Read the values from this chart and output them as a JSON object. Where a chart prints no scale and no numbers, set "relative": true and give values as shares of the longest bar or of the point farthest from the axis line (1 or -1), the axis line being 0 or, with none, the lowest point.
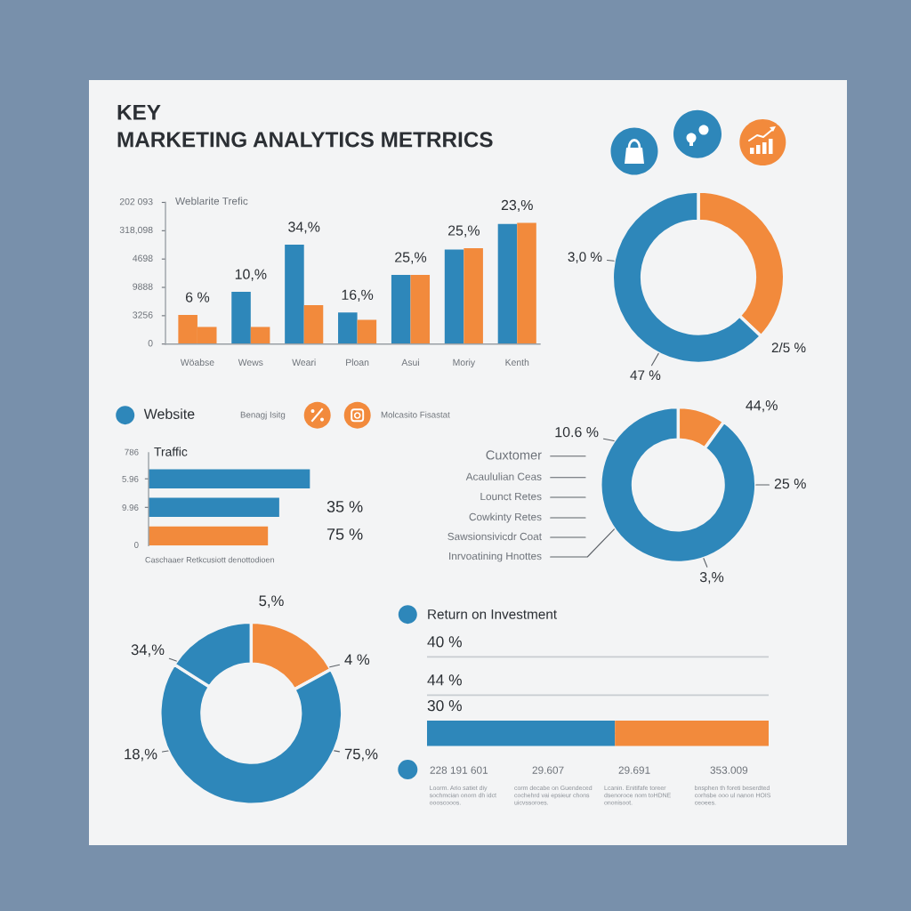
{
  "chart_data": [
    {
      "type": "bar",
      "relative": true,
      "title": "KEY\nMARKETING ANALYTICS METRRICS",
      "subtitle": "Weblarite Trefic",
      "categories": [
        "Wöabse",
        "Wews",
        "Weari",
        "Ploan",
        "Asui",
        "Moriy",
        "Kenth"
      ],
      "series": [
        {
          "colors": [
            "#f28a3c",
            "#2e87ba",
            "#2e87ba",
            "#2e87ba",
            "#2e87ba",
            "#2e87ba",
            "#2e87ba"
          ],
          "values": [
            0.24,
            0.43,
            0.82,
            0.26,
            0.57,
            0.78,
            0.99
          ]
        },
        {
          "color": "#f28a3c",
          "values": [
            0.14,
            0.14,
            0.32,
            0.2,
            0.57,
            0.79,
            1
          ]
        }
      ],
      "annotations": [
        "202 093",
        "318,098",
        "4698",
        "9888",
        "3256",
        "0",
        {
          "text": "6 %",
          "x": "Wöabse",
          "y": 0.24
        },
        {
          "text": "10,%",
          "x": "Wews",
          "y": 0.43
        },
        {
          "text": "34,%",
          "x": "Weari",
          "y": 0.82
        },
        {
          "text": "16,%",
          "x": "Ploan",
          "y": 0.26
        },
        {
          "text": "25,%",
          "x": "Asui",
          "y": 0.57
        },
        {
          "text": "25,%",
          "x": "Moriy",
          "y": 0.79
        },
        {
          "text": "23,%",
          "x": "Kenth",
          "y": 1
        }
      ]
    },
    {
      "type": "donut",
      "categories": [
        null,
        null
      ],
      "values": [
        37,
        63
      ],
      "colors": [
        "#f28a3c",
        "#2e87ba"
      ],
      "annotations": [
        "3,0 %",
        "2/5 %",
        "47 %"
      ]
    },
    {
      "type": "other",
      "annotations": [
        "Website",
        "Benagj Isitg",
        "Molcasito Fisastat"
      ]
    },
    {
      "type": "bar",
      "orientation": "horizontal",
      "relative": true,
      "title": "Traffic",
      "xlabel": "Caschaaer Retkcusiott denottodioen",
      "categories": [
        "5.96",
        "9.96",
        null
      ],
      "values": [
        1,
        0.81,
        0.74
      ],
      "colors": [
        "#2e87ba",
        "#2e87ba",
        "#f28a3c"
      ],
      "annotations": [
        "786",
        "0",
        "35 %",
        "75 %"
      ]
    },
    {
      "type": "donut",
      "categories": [
        null,
        null
      ],
      "values": [
        10,
        90
      ],
      "colors": [
        "#f28a3c",
        "#2e87ba"
      ],
      "annotations": [
        "10.6 %",
        "44,%",
        "25 %",
        "3,%",
        "Cuxtomer",
        "Acaululian Ceas",
        "Lounct Retes",
        "Cowkinty Retes",
        "Sawsionsivicdr Coat",
        "Inrvoatining Hnottes"
      ]
    },
    {
      "type": "donut",
      "categories": [
        null,
        null,
        null
      ],
      "values": [
        17,
        67,
        16
      ],
      "colors": [
        "#f28a3c",
        "#2e87ba",
        "#2e87ba"
      ],
      "annotations": [
        "5,%",
        "34,%",
        "4 %",
        "18,%",
        "75,%"
      ]
    },
    {
      "type": "bar",
      "orientation": "horizontal",
      "stacked": true,
      "relative": true,
      "title": "Return on Investment",
      "categories": [
        "40 %",
        "44 %",
        "30 %"
      ],
      "series": [
        {
          "color": "#2e87ba",
          "values": [
            null,
            null,
            0.55
          ]
        },
        {
          "color": "#f28a3c",
          "values": [
            null,
            null,
            0.45
          ]
        }
      ],
      "grid": "y"
    },
    {
      "type": "other",
      "annotations": [
        "228 191 601",
        "29.607",
        "29.691",
        "353.009",
        "Loorm. Ario satiet diy\nsochmcian onorn dh idct\noooscooos.",
        "corm decabe on Guendeced\ncochehrd vai epsieur chons\nuicvssoroes.",
        "Lcanin. Enitifafe toreer\ndsenoroce nom toHDNE\nononisoot.",
        "bnsphen th foreti beserdted\ncorhsbe ooo ul nanon HOIS\nceoees."
      ]
    }
  ]
}
